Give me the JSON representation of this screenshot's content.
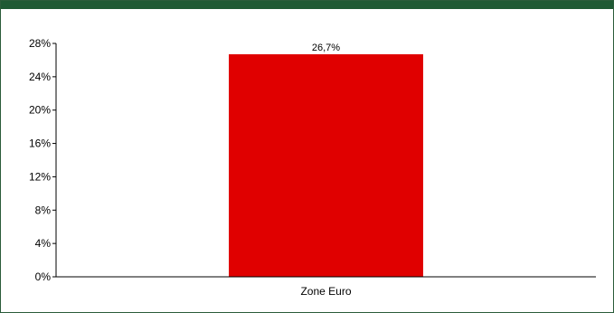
{
  "header_band_color": "#1f5a34",
  "chart_data": {
    "type": "bar",
    "categories": [
      "Zone Euro"
    ],
    "values": [
      26.7
    ],
    "data_labels": [
      "26,7%"
    ],
    "y_ticks": [
      "0%",
      "4%",
      "8%",
      "12%",
      "16%",
      "20%",
      "24%",
      "28%"
    ],
    "ylim": [
      0,
      28
    ],
    "bar_color": "#e00000",
    "grid": false,
    "legend": "none"
  }
}
